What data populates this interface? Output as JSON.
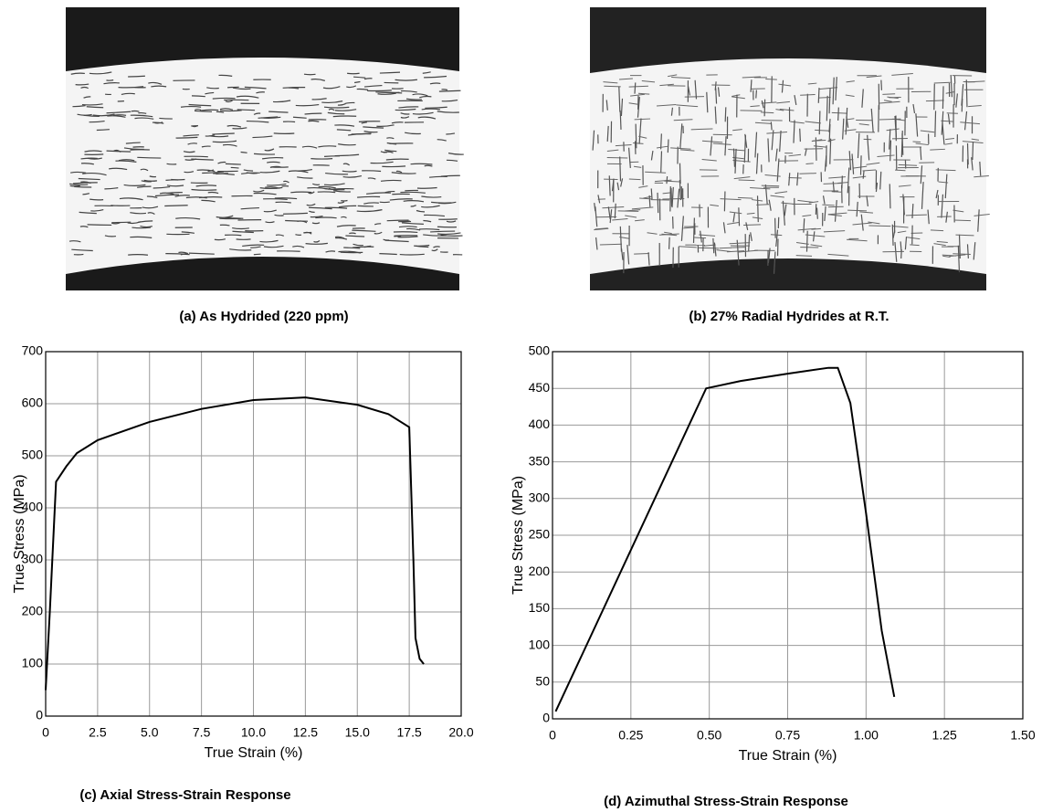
{
  "images": [
    {
      "caption": "(a) As Hydrided (220 ppm)"
    },
    {
      "caption": "(b) 27% Radial Hydrides at R.T."
    }
  ],
  "chart_data": [
    {
      "type": "line",
      "caption": "(c) Axial Stress-Strain Response",
      "xlabel": "True Strain (%)",
      "ylabel": "True Stress (MPa)",
      "x": [
        0,
        0.2,
        0.5,
        1,
        1.5,
        2.5,
        5,
        7.5,
        10,
        12.5,
        15,
        16.5,
        17.5,
        17.7,
        17.8,
        18,
        18.2
      ],
      "series": [
        {
          "color": "#000000",
          "values": [
            50,
            200,
            450,
            480,
            505,
            530,
            565,
            590,
            607,
            612,
            598,
            580,
            555,
            300,
            150,
            110,
            100
          ]
        }
      ],
      "xlim": [
        0,
        20
      ],
      "ylim": [
        0,
        700
      ],
      "xticks": [
        0,
        2.5,
        {
          "value": 5,
          "label": "5.0"
        },
        7.5,
        {
          "value": 10,
          "label": "10.0"
        },
        12.5,
        {
          "value": 15,
          "label": "15.0"
        },
        17.5,
        {
          "value": 20,
          "label": "20.0"
        }
      ],
      "yticks": [
        0,
        100,
        200,
        300,
        400,
        500,
        600,
        700
      ],
      "grid": true
    },
    {
      "type": "line",
      "caption": "(d) Azimuthal Stress-Strain Response",
      "xlabel": "True Strain (%)",
      "ylabel": "True Stress (MPa)",
      "x": [
        0.01,
        0.49,
        0.6,
        0.75,
        0.88,
        0.91,
        0.95,
        1.0,
        1.05,
        1.09
      ],
      "series": [
        {
          "color": "#000000",
          "values": [
            10,
            450,
            460,
            470,
            478,
            478,
            430,
            280,
            120,
            30
          ]
        }
      ],
      "xlim": [
        0,
        1.5
      ],
      "ylim": [
        0,
        500
      ],
      "xticks": [
        0,
        0.25,
        {
          "value": 0.5,
          "label": "0.50"
        },
        0.75,
        {
          "value": 1,
          "label": "1.00"
        },
        1.25,
        {
          "value": 1.5,
          "label": "1.50"
        }
      ],
      "yticks": [
        0,
        50,
        100,
        150,
        200,
        250,
        300,
        350,
        400,
        450,
        500
      ],
      "grid": true
    }
  ]
}
